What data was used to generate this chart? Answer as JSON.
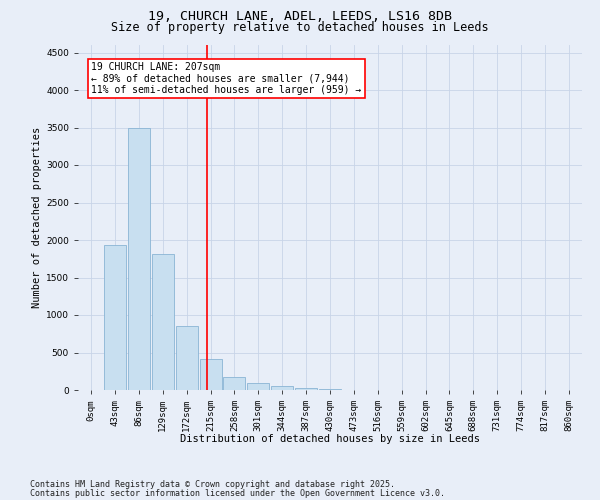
{
  "title_line1": "19, CHURCH LANE, ADEL, LEEDS, LS16 8DB",
  "title_line2": "Size of property relative to detached houses in Leeds",
  "xlabel": "Distribution of detached houses by size in Leeds",
  "ylabel": "Number of detached properties",
  "bar_labels": [
    "0sqm",
    "43sqm",
    "86sqm",
    "129sqm",
    "172sqm",
    "215sqm",
    "258sqm",
    "301sqm",
    "344sqm",
    "387sqm",
    "430sqm",
    "473sqm",
    "516sqm",
    "559sqm",
    "602sqm",
    "645sqm",
    "688sqm",
    "731sqm",
    "774sqm",
    "817sqm",
    "860sqm"
  ],
  "bar_values": [
    5,
    1940,
    3500,
    1820,
    850,
    420,
    175,
    95,
    55,
    30,
    12,
    5,
    3,
    1,
    0,
    0,
    0,
    0,
    0,
    0,
    0
  ],
  "bar_color": "#c8dff0",
  "bar_edgecolor": "#8ab4d4",
  "vline_x": 4.83,
  "vline_color": "red",
  "annotation_text": "19 CHURCH LANE: 207sqm\n← 89% of detached houses are smaller (7,944)\n11% of semi-detached houses are larger (959) →",
  "annotation_box_color": "white",
  "annotation_box_edgecolor": "red",
  "ylim": [
    0,
    4600
  ],
  "yticks": [
    0,
    500,
    1000,
    1500,
    2000,
    2500,
    3000,
    3500,
    4000,
    4500
  ],
  "grid_color": "#c8d4e8",
  "bg_color": "#e8eef8",
  "footnote1": "Contains HM Land Registry data © Crown copyright and database right 2025.",
  "footnote2": "Contains public sector information licensed under the Open Government Licence v3.0.",
  "title_fontsize": 9.5,
  "subtitle_fontsize": 8.5,
  "label_fontsize": 7.5,
  "tick_fontsize": 6.5,
  "footnote_fontsize": 6,
  "annotation_fontsize": 7
}
